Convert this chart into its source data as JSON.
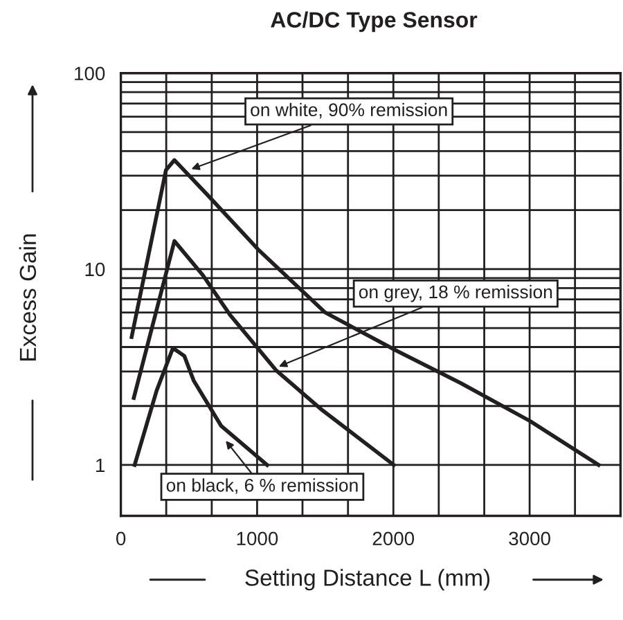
{
  "chart_data": {
    "type": "line",
    "title": "AC/DC Type Sensor",
    "xlabel": "Setting Distance L (mm)",
    "ylabel": "Excess Gain",
    "log": "y",
    "grid": true,
    "legend": false,
    "marker": "none",
    "line_style": "solid",
    "xlim": [
      0,
      3667
    ],
    "xticks": [
      0,
      {
        "value": 333,
        "label": null
      },
      {
        "value": 667,
        "label": null
      },
      1000,
      {
        "value": 1333,
        "label": null
      },
      {
        "value": 1667,
        "label": null
      },
      2000,
      {
        "value": 2333,
        "label": null
      },
      {
        "value": 2667,
        "label": null
      },
      3000,
      {
        "value": 3333,
        "label": null
      },
      {
        "value": 3667,
        "label": null
      }
    ],
    "ylim": [
      0.55,
      100
    ],
    "yticks": [
      1,
      {
        "value": 2,
        "label": null
      },
      {
        "value": 3,
        "label": null
      },
      {
        "value": 4,
        "label": null
      },
      {
        "value": 5,
        "label": null
      },
      {
        "value": 6,
        "label": null
      },
      {
        "value": 7,
        "label": null
      },
      {
        "value": 8,
        "label": null
      },
      {
        "value": 9,
        "label": null
      },
      10,
      {
        "value": 20,
        "label": null
      },
      {
        "value": 30,
        "label": null
      },
      {
        "value": 40,
        "label": null
      },
      {
        "value": 50,
        "label": null
      },
      {
        "value": 60,
        "label": null
      },
      {
        "value": 70,
        "label": null
      },
      {
        "value": 80,
        "label": null
      },
      {
        "value": 90,
        "label": null
      },
      100
    ],
    "series": [
      {
        "color": "#231f20",
        "x": [
          79,
          331,
          393,
          636,
          1007,
          1500,
          2020,
          2493,
          3000,
          3506
        ],
        "values": [
          4.5,
          32,
          36,
          23.9,
          12.6,
          6.0,
          3.84,
          2.62,
          1.68,
          1.0
        ]
      },
      {
        "color": "#231f20",
        "x": [
          95,
          393,
          602,
          804,
          1142,
          1480,
          2003
        ],
        "values": [
          2.2,
          13.9,
          9.3,
          5.8,
          3.03,
          1.9,
          1.0
        ]
      },
      {
        "color": "#231f20",
        "x": [
          101,
          263,
          382,
          466,
          534,
          737,
          1074
        ],
        "values": [
          1.0,
          2.4,
          3.95,
          3.6,
          2.7,
          1.58,
          1.0
        ]
      }
    ],
    "annotations": [
      {
        "text": "on white, 90% remission",
        "x": 517,
        "y": 32.4
      },
      {
        "text": "on grey, 18 % remission",
        "x": 1159,
        "y": 3.18
      },
      {
        "text": "on black, 6 % remission",
        "x": 770,
        "y": 1.33
      }
    ]
  }
}
